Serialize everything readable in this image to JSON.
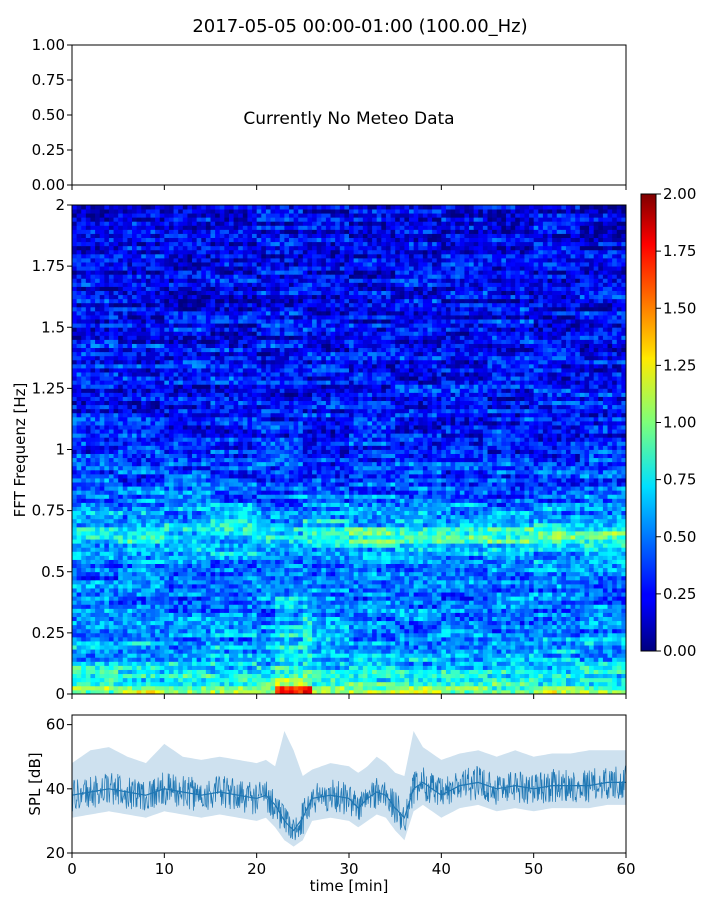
{
  "title": "2017-05-05 00:00-01:00 (100.00_Hz)",
  "chart_data": [
    {
      "panel": "meteo",
      "type": "line",
      "ylim": [
        0,
        1
      ],
      "yticks": [
        "0.00",
        "0.25",
        "0.50",
        "0.75",
        "1.00"
      ],
      "annotation": "Currently No Meteo Data",
      "series": []
    },
    {
      "panel": "spectrogram",
      "type": "heatmap",
      "ylabel": "FFT Frequenz [Hz]",
      "xlim": [
        0,
        60
      ],
      "ylim": [
        0,
        2
      ],
      "yticks": [
        "0",
        "0.25",
        "0.5",
        "0.75",
        "1",
        "1.25",
        "1.5",
        "1.75",
        "2"
      ],
      "colorbar": {
        "cmap": "jet",
        "range": [
          0,
          2
        ],
        "ticks": [
          "0.00",
          "0.25",
          "0.50",
          "0.75",
          "1.00",
          "1.25",
          "1.50",
          "1.75",
          "2.00"
        ]
      },
      "typical_intensity_by_frequency": [
        {
          "freq_hz": 0.0,
          "value": 1.1
        },
        {
          "freq_hz": 0.05,
          "value": 0.8
        },
        {
          "freq_hz": 0.15,
          "value": 0.6
        },
        {
          "freq_hz": 0.3,
          "value": 0.5
        },
        {
          "freq_hz": 0.5,
          "value": 0.45
        },
        {
          "freq_hz": 0.65,
          "value": 0.75
        },
        {
          "freq_hz": 0.8,
          "value": 0.45
        },
        {
          "freq_hz": 1.0,
          "value": 0.3
        },
        {
          "freq_hz": 1.5,
          "value": 0.25
        },
        {
          "freq_hz": 2.0,
          "value": 0.2
        }
      ]
    },
    {
      "panel": "spl",
      "type": "line",
      "xlabel": "time [min]",
      "ylabel": "SPL [dB]",
      "xlim": [
        0,
        60
      ],
      "ylim": [
        20,
        63
      ],
      "xticks": [
        "0",
        "10",
        "20",
        "30",
        "40",
        "50",
        "60"
      ],
      "yticks": [
        "20",
        "40",
        "60"
      ],
      "color": "#1f77b4",
      "x": [
        0,
        2,
        4,
        6,
        8,
        10,
        12,
        14,
        16,
        18,
        20,
        21,
        22,
        23,
        24,
        25,
        26,
        28,
        30,
        31,
        32,
        33,
        34,
        35,
        36,
        37,
        38,
        40,
        42,
        44,
        46,
        48,
        50,
        52,
        54,
        56,
        58,
        60
      ],
      "mean": [
        38,
        39,
        40,
        39,
        38,
        40,
        39,
        38,
        39,
        38,
        37,
        38,
        35,
        30,
        27,
        31,
        37,
        38,
        37,
        34,
        37,
        39,
        38,
        34,
        31,
        40,
        42,
        38,
        41,
        42,
        40,
        41,
        40,
        41,
        41,
        41,
        42,
        42
      ],
      "lower": [
        31,
        32,
        33,
        32,
        31,
        33,
        32,
        31,
        32,
        31,
        30,
        31,
        28,
        24,
        22,
        24,
        30,
        31,
        30,
        28,
        30,
        32,
        31,
        27,
        24,
        33,
        35,
        31,
        34,
        35,
        33,
        34,
        33,
        34,
        34,
        34,
        35,
        35
      ],
      "upper": [
        48,
        52,
        53,
        50,
        48,
        54,
        50,
        49,
        50,
        49,
        48,
        49,
        47,
        58,
        52,
        44,
        46,
        48,
        47,
        45,
        47,
        50,
        48,
        45,
        44,
        58,
        53,
        49,
        51,
        52,
        50,
        52,
        50,
        51,
        51,
        52,
        52,
        52
      ]
    }
  ]
}
